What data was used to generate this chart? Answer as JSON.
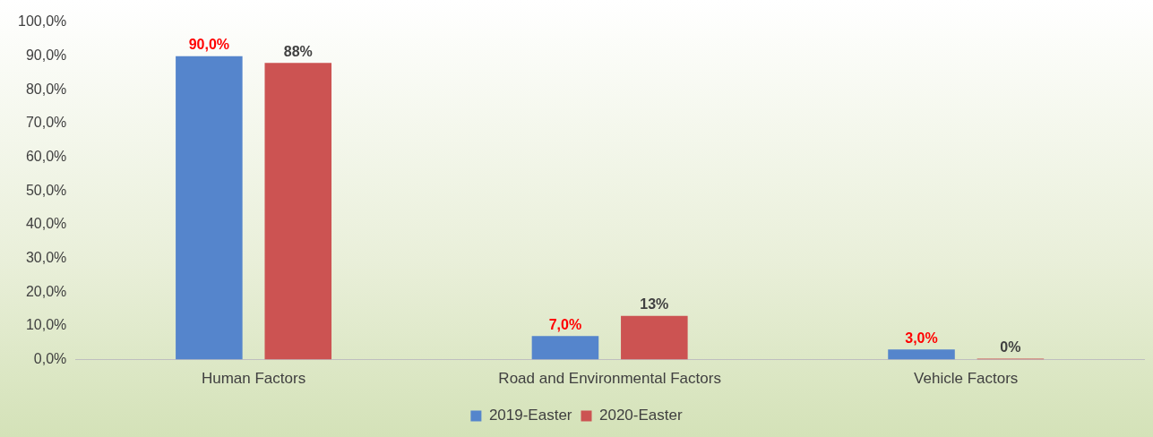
{
  "chart_data": {
    "type": "bar",
    "categories": [
      "Human Factors",
      "Road and Environmental Factors",
      "Vehicle Factors"
    ],
    "series": [
      {
        "name": "2019-Easter",
        "color": "#5585cc",
        "values": [
          90,
          7,
          3
        ],
        "value_labels": [
          "90,0%",
          "7,0%",
          "3,0%"
        ]
      },
      {
        "name": "2020-Easter",
        "color": "#cc5352",
        "values": [
          88,
          13,
          0
        ],
        "value_labels": [
          "88%",
          "13%",
          "0%"
        ]
      }
    ],
    "ylim": [
      0,
      100
    ],
    "yticks": [
      {
        "value": 0,
        "label": "0,0%"
      },
      {
        "value": 10,
        "label": "10,0%"
      },
      {
        "value": 20,
        "label": "20,0%"
      },
      {
        "value": 30,
        "label": "30,0%"
      },
      {
        "value": 40,
        "label": "40,0%"
      },
      {
        "value": 50,
        "label": "50,0%"
      },
      {
        "value": 60,
        "label": "60,0%"
      },
      {
        "value": 70,
        "label": "70,0%"
      },
      {
        "value": 80,
        "label": "80,0%"
      },
      {
        "value": 90,
        "label": "90,0%"
      },
      {
        "value": 100,
        "label": "100,0%"
      }
    ],
    "legend": "bottom"
  }
}
